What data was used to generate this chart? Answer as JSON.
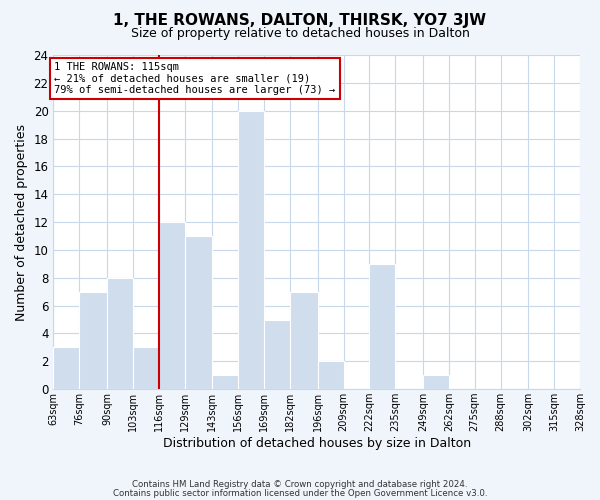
{
  "title": "1, THE ROWANS, DALTON, THIRSK, YO7 3JW",
  "subtitle": "Size of property relative to detached houses in Dalton",
  "xlabel": "Distribution of detached houses by size in Dalton",
  "ylabel": "Number of detached properties",
  "footer_lines": [
    "Contains HM Land Registry data © Crown copyright and database right 2024.",
    "Contains public sector information licensed under the Open Government Licence v3.0."
  ],
  "bin_edges": [
    63,
    76,
    90,
    103,
    116,
    129,
    143,
    156,
    169,
    182,
    196,
    209,
    222,
    235,
    249,
    262,
    275,
    288,
    302,
    315,
    328
  ],
  "bin_labels": [
    "63sqm",
    "76sqm",
    "90sqm",
    "103sqm",
    "116sqm",
    "129sqm",
    "143sqm",
    "156sqm",
    "169sqm",
    "182sqm",
    "196sqm",
    "209sqm",
    "222sqm",
    "235sqm",
    "249sqm",
    "262sqm",
    "275sqm",
    "288sqm",
    "302sqm",
    "315sqm",
    "328sqm"
  ],
  "counts": [
    3,
    7,
    8,
    3,
    12,
    11,
    1,
    20,
    5,
    7,
    2,
    0,
    9,
    0,
    1,
    0,
    0,
    0,
    0,
    0
  ],
  "bar_color": "#cfdded",
  "bar_edge_color": "#ffffff",
  "property_line_x": 116,
  "property_line_color": "#cc0000",
  "annotation_title": "1 THE ROWANS: 115sqm",
  "annotation_line1": "← 21% of detached houses are smaller (19)",
  "annotation_line2": "79% of semi-detached houses are larger (73) →",
  "annotation_box_color": "#ffffff",
  "annotation_box_edge": "#cc0000",
  "ylim": [
    0,
    24
  ],
  "yticks": [
    0,
    2,
    4,
    6,
    8,
    10,
    12,
    14,
    16,
    18,
    20,
    22,
    24
  ],
  "grid_color": "#c8d8ea",
  "plot_bg_color": "#ffffff",
  "fig_bg_color": "#f0f5fb",
  "title_fontsize": 11,
  "subtitle_fontsize": 9
}
